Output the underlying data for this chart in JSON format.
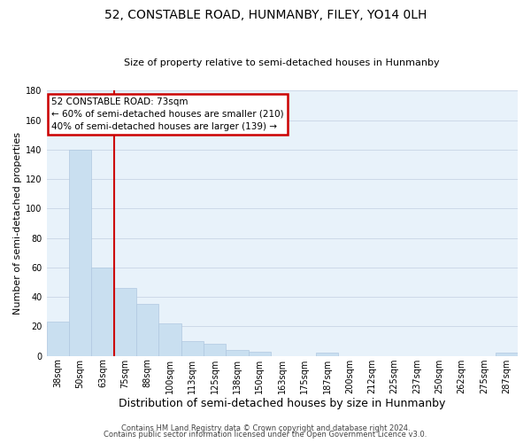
{
  "title": "52, CONSTABLE ROAD, HUNMANBY, FILEY, YO14 0LH",
  "subtitle": "Size of property relative to semi-detached houses in Hunmanby",
  "xlabel": "Distribution of semi-detached houses by size in Hunmanby",
  "ylabel": "Number of semi-detached properties",
  "bin_labels": [
    "38sqm",
    "50sqm",
    "63sqm",
    "75sqm",
    "88sqm",
    "100sqm",
    "113sqm",
    "125sqm",
    "138sqm",
    "150sqm",
    "163sqm",
    "175sqm",
    "187sqm",
    "200sqm",
    "212sqm",
    "225sqm",
    "237sqm",
    "250sqm",
    "262sqm",
    "275sqm",
    "287sqm"
  ],
  "bar_heights": [
    23,
    140,
    60,
    46,
    35,
    22,
    10,
    8,
    4,
    3,
    0,
    0,
    2,
    0,
    0,
    0,
    0,
    0,
    0,
    0,
    2
  ],
  "bar_color": "#c9dff0",
  "bar_edge_color": "#b0c8e0",
  "vline_color": "#cc0000",
  "annotation_title": "52 CONSTABLE ROAD: 73sqm",
  "annotation_line1": "← 60% of semi-detached houses are smaller (210)",
  "annotation_line2": "40% of semi-detached houses are larger (139) →",
  "annotation_box_color": "#cc0000",
  "ylim": [
    0,
    180
  ],
  "yticks": [
    0,
    20,
    40,
    60,
    80,
    100,
    120,
    140,
    160,
    180
  ],
  "footer1": "Contains HM Land Registry data © Crown copyright and database right 2024.",
  "footer2": "Contains public sector information licensed under the Open Government Licence v3.0.",
  "grid_color": "#cdd9e8",
  "background_color": "#e8f2fa",
  "title_fontsize": 10,
  "subtitle_fontsize": 8,
  "xlabel_fontsize": 9,
  "ylabel_fontsize": 8,
  "tick_fontsize": 7,
  "footer_fontsize": 6
}
